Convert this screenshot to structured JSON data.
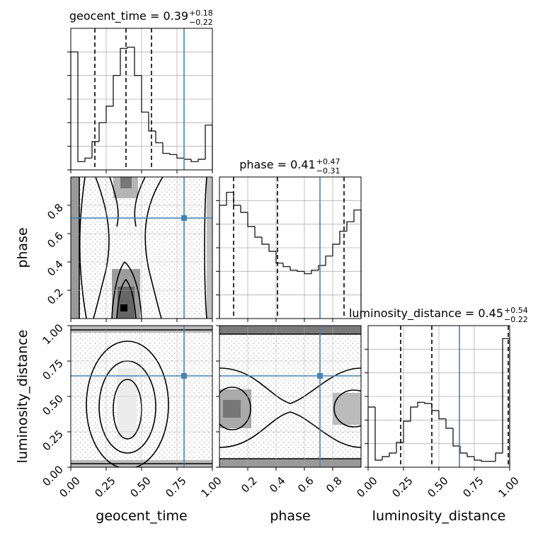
{
  "chart_data": {
    "type": "corner",
    "hist_ylim": [
      0,
      6
    ],
    "hist_yticks": [
      0,
      1,
      2,
      3,
      4,
      5
    ],
    "truth_color": "#4682b4",
    "parameters": [
      {
        "name": "geocent_time",
        "title": "geocent_time = 0.39",
        "plus": "+0.18",
        "minus": "−0.22",
        "lim": [
          0,
          1
        ],
        "ticks": [
          {
            "value": 0,
            "label": "0.00"
          },
          {
            "value": 0.25,
            "label": "0.25"
          },
          {
            "value": 0.5,
            "label": "0.50"
          },
          {
            "value": 0.75,
            "label": "0.75"
          },
          {
            "value": 1,
            "label": "1.00"
          }
        ],
        "bins": [
          0,
          0.05,
          0.1,
          0.15,
          0.2,
          0.25,
          0.3,
          0.35,
          0.4,
          0.45,
          0.5,
          0.55,
          0.6,
          0.65,
          0.7,
          0.75,
          0.8,
          0.85,
          0.9,
          0.95,
          1
        ],
        "counts": [
          5.0,
          0.35,
          0.5,
          1.2,
          2.0,
          2.7,
          4.0,
          5.15,
          5.2,
          4.0,
          2.45,
          1.65,
          1.15,
          0.7,
          0.65,
          0.5,
          0.45,
          0.35,
          0.45,
          1.9
        ],
        "quantiles": [
          0.17,
          0.39,
          0.57
        ],
        "truth": 0.8
      },
      {
        "name": "phase",
        "title": "phase = 0.41",
        "plus": "+0.47",
        "minus": "−0.31",
        "lim": [
          0,
          1
        ],
        "ticks": [
          0.2,
          0.4,
          0.6,
          0.8
        ],
        "bins": [
          0,
          0.05,
          0.1,
          0.15,
          0.2,
          0.25,
          0.3,
          0.35,
          0.4,
          0.45,
          0.5,
          0.55,
          0.6,
          0.65,
          0.7,
          0.75,
          0.8,
          0.85,
          0.9,
          0.95,
          1
        ],
        "counts": [
          4.8,
          5.35,
          4.8,
          4.5,
          3.9,
          3.45,
          3.15,
          2.85,
          2.35,
          2.2,
          2.05,
          2.0,
          1.9,
          2.05,
          2.25,
          2.65,
          3.15,
          3.7,
          4.1,
          4.6
        ],
        "quantiles": [
          0.1,
          0.41,
          0.88
        ],
        "truth": 0.71
      },
      {
        "name": "luminosity_distance",
        "title": "luminosity_distance = 0.45",
        "plus": "+0.54",
        "minus": "−0.22",
        "lim": [
          0,
          1
        ],
        "ticks": [
          {
            "value": 0,
            "label": "0.00"
          },
          {
            "value": 0.25,
            "label": "0.25"
          },
          {
            "value": 0.5,
            "label": "0.50"
          },
          {
            "value": 0.75,
            "label": "0.75"
          },
          {
            "value": 1,
            "label": "1.00"
          }
        ],
        "bins": [
          0,
          0.05,
          0.1,
          0.15,
          0.2,
          0.25,
          0.3,
          0.35,
          0.4,
          0.45,
          0.5,
          0.55,
          0.6,
          0.65,
          0.7,
          0.75,
          0.8,
          0.85,
          0.9,
          0.95,
          1
        ],
        "counts": [
          2.55,
          0.3,
          0.45,
          0.6,
          1.05,
          1.95,
          2.55,
          2.75,
          2.7,
          2.4,
          2.05,
          1.65,
          0.9,
          0.6,
          0.45,
          0.3,
          0.25,
          0.25,
          0.6,
          5.45
        ],
        "quantiles": [
          0.23,
          0.45,
          0.99
        ],
        "truth": 0.645
      }
    ]
  }
}
